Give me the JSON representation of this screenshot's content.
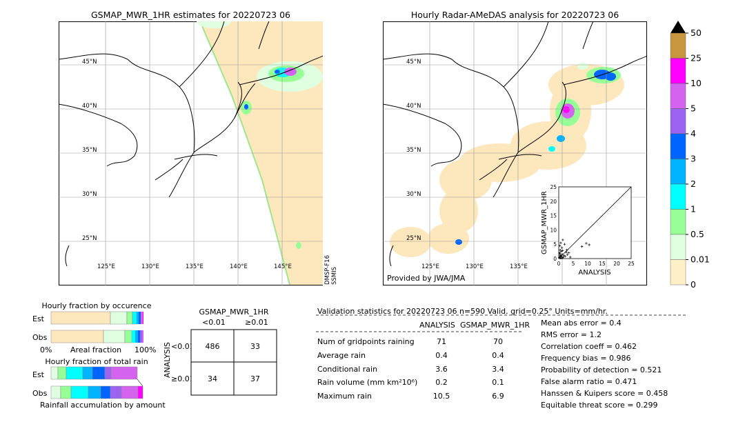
{
  "left_map": {
    "title": "GSMAP_MWR_1HR estimates for 20220723 06",
    "lat_labels": [
      "45°N",
      "40°N",
      "35°N",
      "30°N",
      "25°N"
    ],
    "lon_labels": [
      "125°E",
      "130°E",
      "135°E",
      "140°E",
      "145°E"
    ],
    "satellite_label": "DMSP-F16\nSSMIS"
  },
  "right_map": {
    "title": "Hourly Radar-AMeDAS analysis for 20220723 06",
    "lat_labels": [
      "45°N",
      "40°N",
      "35°N",
      "30°N",
      "25°N"
    ],
    "lon_labels": [
      "125°E",
      "130°E",
      "135°E"
    ],
    "provider": "Provided by JWA/JMA"
  },
  "colorbar": {
    "labels": [
      "50",
      "25",
      "10",
      "5",
      "4",
      "3",
      "2",
      "1",
      "0.5",
      "0.01",
      "0"
    ],
    "colors": [
      "#c8963c",
      "#ff00ff",
      "#d464f0",
      "#9b64f0",
      "#0064ff",
      "#00b4ff",
      "#00ffff",
      "#96ff96",
      "#e0ffe0",
      "#fff0c8"
    ]
  },
  "occurrence": {
    "title": "Hourly fraction by occurence",
    "rows": [
      "Est",
      "Obs"
    ],
    "axis_left": "0%",
    "axis_mid": "Areal fraction",
    "axis_right": "100%"
  },
  "total_rain": {
    "title": "Hourly fraction of total rain",
    "rows": [
      "Est",
      "Obs"
    ],
    "footer": "Rainfall accumulation by amount"
  },
  "contingency": {
    "title": "GSMAP_MWR_1HR",
    "col_labels": [
      "<0.01",
      "≥0.01"
    ],
    "row_axis": "ANALYSIS",
    "row_labels": [
      "<0.01",
      "≥0.01"
    ],
    "cells": [
      "486",
      "33",
      "34",
      "37"
    ]
  },
  "validation": {
    "header": "Validation statistics for 20220723 06  n=590 Valid. grid=0.25° Units=mm/hr.",
    "col_analysis": "ANALYSIS",
    "col_gsmap": "GSMAP_MWR_1HR",
    "rows": [
      {
        "label": "Num of gridpoints raining",
        "analysis": "71",
        "gsmap": "70"
      },
      {
        "label": "Average rain",
        "analysis": "0.4",
        "gsmap": "0.4"
      },
      {
        "label": "Conditional rain",
        "analysis": "3.6",
        "gsmap": "3.4"
      },
      {
        "label": "Rain volume (mm km²10⁶)",
        "analysis": "0.2",
        "gsmap": "0.1"
      },
      {
        "label": "Maximum rain",
        "analysis": "10.5",
        "gsmap": "6.9"
      }
    ],
    "scores": [
      "Mean abs error =    0.4",
      "RMS error =    1.2",
      "Correlation coeff =  0.462",
      "Frequency bias =  0.986",
      "Probability of detection =  0.521",
      "False alarm ratio =  0.471",
      "Hanssen & Kuipers score =  0.458",
      "Equitable threat score =  0.299"
    ]
  },
  "chart_data": {
    "type": "scatter",
    "xlabel": "ANALYSIS",
    "ylabel": "GSMAP_MWR_1HR",
    "xlim": [
      0,
      25
    ],
    "ylim": [
      0,
      25
    ],
    "x_ticks": [
      0,
      5,
      10,
      15,
      20,
      25
    ],
    "y_ticks": [
      0,
      5,
      10,
      15,
      20,
      25
    ],
    "x": [
      0.2,
      0.4,
      0.6,
      0.8,
      1.0,
      1.2,
      1.5,
      0.3,
      0.5,
      0.9,
      1.8,
      2.2,
      2.6,
      3.0,
      0.4,
      0.7,
      1.1,
      1.4,
      2.0,
      3.5,
      4.0,
      1.0,
      0.5,
      2.8,
      8.0,
      9.5,
      10.5,
      0.3,
      0.6,
      1.3
    ],
    "y": [
      0.3,
      0.5,
      0.2,
      1.0,
      0.6,
      1.5,
      0.4,
      2.0,
      3.0,
      2.5,
      1.0,
      0.8,
      2.2,
      1.4,
      4.5,
      5.5,
      3.8,
      6.5,
      5.0,
      2.0,
      0.5,
      0.2,
      1.2,
      3.0,
      4.2,
      5.3,
      4.8,
      1.8,
      0.9,
      2.8
    ]
  }
}
